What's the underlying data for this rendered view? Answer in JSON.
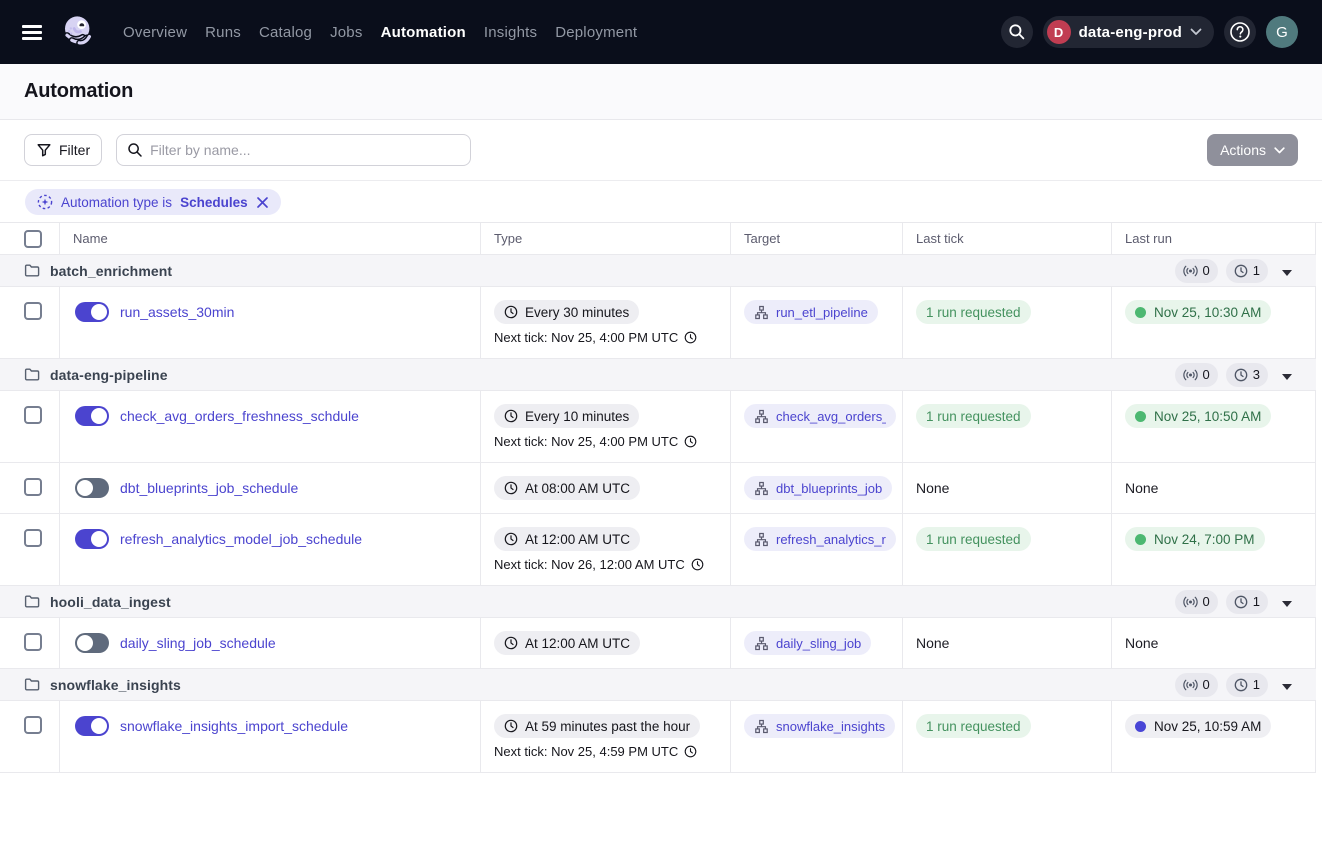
{
  "colors": {
    "nav_bg": "#0A0E1B",
    "accent": "#4B44CF",
    "success_green": "#4CB871",
    "started_blue": "#4946D6",
    "deployment_red": "#C13D52",
    "user_teal": "#507A7E"
  },
  "nav": {
    "items": [
      {
        "label": "Overview",
        "active": false
      },
      {
        "label": "Runs",
        "active": false
      },
      {
        "label": "Catalog",
        "active": false
      },
      {
        "label": "Jobs",
        "active": false
      },
      {
        "label": "Automation",
        "active": true
      },
      {
        "label": "Insights",
        "active": false
      },
      {
        "label": "Deployment",
        "active": false
      }
    ],
    "deployment": {
      "initial": "D",
      "name": "data-eng-prod"
    },
    "help_glyph": "?",
    "user_initial": "G"
  },
  "page": {
    "title": "Automation"
  },
  "toolbar": {
    "filter_label": "Filter",
    "search_placeholder": "Filter by name...",
    "search_value": "",
    "actions_label": "Actions"
  },
  "active_filter": {
    "prefix": "Automation type is",
    "value": "Schedules"
  },
  "table": {
    "columns": [
      "Name",
      "Type",
      "Target",
      "Last tick",
      "Last run"
    ],
    "groups": [
      {
        "name": "batch_enrichment",
        "sensor_count": "0",
        "schedule_count": "1",
        "rows": [
          {
            "name": "run_assets_30min",
            "enabled": true,
            "schedule": "Every 30 minutes",
            "next_tick": "Next tick: Nov 25, 4:00 PM UTC",
            "target": "run_etl_pipeline",
            "last_tick": "1 run requested",
            "last_run": {
              "label": "Nov 25, 10:30 AM",
              "status": "success"
            }
          }
        ]
      },
      {
        "name": "data-eng-pipeline",
        "sensor_count": "0",
        "schedule_count": "3",
        "rows": [
          {
            "name": "check_avg_orders_freshness_schdule",
            "enabled": true,
            "schedule": "Every 10 minutes",
            "next_tick": "Next tick: Nov 25, 4:00 PM UTC",
            "target": "check_avg_orders_",
            "last_tick": "1 run requested",
            "last_run": {
              "label": "Nov 25, 10:50 AM",
              "status": "success"
            }
          },
          {
            "name": "dbt_blueprints_job_schedule",
            "enabled": false,
            "schedule": "At 08:00 AM UTC",
            "next_tick": null,
            "target": "dbt_blueprints_job",
            "last_tick": "None",
            "last_run": {
              "label": "None",
              "status": "none"
            }
          },
          {
            "name": "refresh_analytics_model_job_schedule",
            "enabled": true,
            "schedule": "At 12:00 AM UTC",
            "next_tick": "Next tick: Nov 26, 12:00 AM UTC",
            "target": "refresh_analytics_r",
            "last_tick": "1 run requested",
            "last_run": {
              "label": "Nov 24, 7:00 PM",
              "status": "success"
            }
          }
        ]
      },
      {
        "name": "hooli_data_ingest",
        "sensor_count": "0",
        "schedule_count": "1",
        "rows": [
          {
            "name": "daily_sling_job_schedule",
            "enabled": false,
            "schedule": "At 12:00 AM UTC",
            "next_tick": null,
            "target": "daily_sling_job",
            "last_tick": "None",
            "last_run": {
              "label": "None",
              "status": "none"
            }
          }
        ]
      },
      {
        "name": "snowflake_insights",
        "sensor_count": "0",
        "schedule_count": "1",
        "rows": [
          {
            "name": "snowflake_insights_import_schedule",
            "enabled": true,
            "schedule": "At 59 minutes past the hour",
            "next_tick": "Next tick: Nov 25, 4:59 PM UTC",
            "target": "snowflake_insights",
            "last_tick": "1 run requested",
            "last_run": {
              "label": "Nov 25, 10:59 AM",
              "status": "started"
            }
          }
        ]
      }
    ]
  }
}
